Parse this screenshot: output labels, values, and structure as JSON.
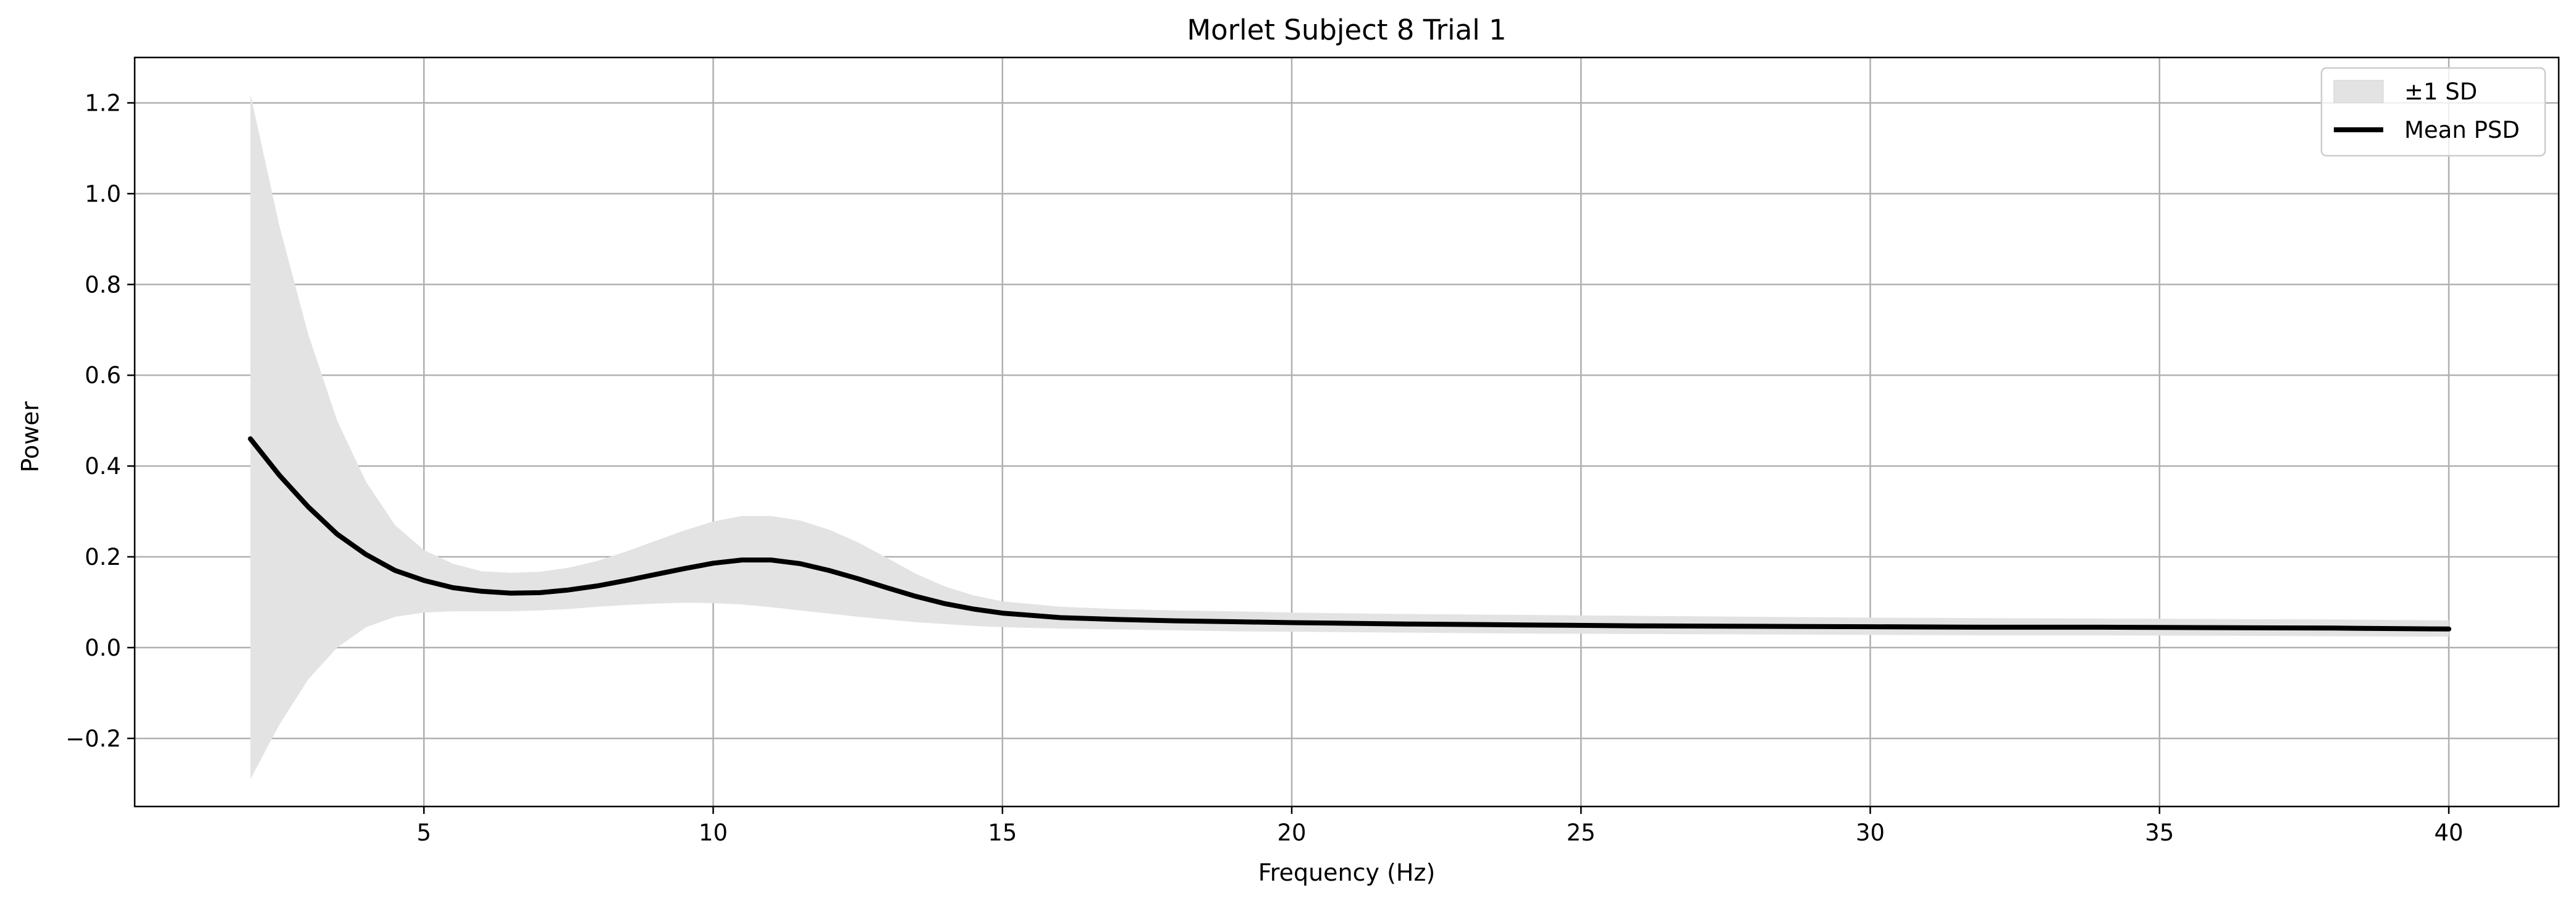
{
  "chart_data": {
    "type": "line",
    "title": "Morlet Subject 8 Trial 1",
    "xlabel": "Frequency (Hz)",
    "ylabel": "Power",
    "xlim": [
      0,
      41.9
    ],
    "ylim": [
      -0.35,
      1.3
    ],
    "grid": true,
    "legend_position": "top-right",
    "xticks": [
      5,
      10,
      15,
      20,
      25,
      30,
      35,
      40
    ],
    "xtick_labels": [
      "5",
      "10",
      "15",
      "20",
      "25",
      "30",
      "35",
      "40"
    ],
    "yticks": [
      -0.2,
      0.0,
      0.2,
      0.4,
      0.6,
      0.8,
      1.0,
      1.2
    ],
    "ytick_labels": [
      "−0.2",
      "0.0",
      "0.2",
      "0.4",
      "0.6",
      "0.8",
      "1.0",
      "1.2"
    ],
    "x": [
      2,
      2.5,
      3,
      3.5,
      4,
      4.5,
      5,
      5.5,
      6,
      6.5,
      7,
      7.5,
      8,
      8.5,
      9,
      9.5,
      10,
      10.5,
      11,
      11.5,
      12,
      12.5,
      13,
      13.5,
      14,
      14.5,
      15,
      16,
      17,
      18,
      19,
      20,
      22,
      24,
      26,
      28,
      30,
      32,
      34,
      36,
      38,
      40
    ],
    "series": [
      {
        "name": "Mean PSD",
        "color": "#000000",
        "values": [
          0.46,
          0.38,
          0.31,
          0.25,
          0.205,
          0.17,
          0.148,
          0.132,
          0.124,
          0.12,
          0.121,
          0.127,
          0.136,
          0.148,
          0.161,
          0.174,
          0.186,
          0.193,
          0.193,
          0.185,
          0.17,
          0.152,
          0.132,
          0.113,
          0.097,
          0.085,
          0.076,
          0.066,
          0.062,
          0.059,
          0.057,
          0.055,
          0.052,
          0.05,
          0.048,
          0.047,
          0.046,
          0.045,
          0.045,
          0.044,
          0.043,
          0.041
        ]
      }
    ],
    "bands": [
      {
        "name": "±1 SD",
        "color": "#e3e3e3",
        "lower": [
          -0.29,
          -0.17,
          -0.07,
          0.0,
          0.045,
          0.068,
          0.077,
          0.08,
          0.08,
          0.08,
          0.082,
          0.085,
          0.09,
          0.094,
          0.097,
          0.099,
          0.098,
          0.095,
          0.089,
          0.082,
          0.075,
          0.068,
          0.062,
          0.056,
          0.052,
          0.048,
          0.045,
          0.042,
          0.04,
          0.038,
          0.036,
          0.035,
          0.033,
          0.031,
          0.03,
          0.029,
          0.028,
          0.027,
          0.027,
          0.026,
          0.025,
          0.024
        ],
        "upper": [
          1.22,
          0.93,
          0.69,
          0.5,
          0.365,
          0.27,
          0.215,
          0.185,
          0.168,
          0.165,
          0.167,
          0.176,
          0.191,
          0.212,
          0.235,
          0.258,
          0.278,
          0.29,
          0.29,
          0.28,
          0.26,
          0.232,
          0.198,
          0.163,
          0.135,
          0.115,
          0.102,
          0.09,
          0.085,
          0.082,
          0.08,
          0.077,
          0.074,
          0.072,
          0.07,
          0.068,
          0.066,
          0.065,
          0.064,
          0.063,
          0.062,
          0.06
        ]
      }
    ],
    "legend": [
      {
        "label": "±1 SD",
        "kind": "patch",
        "color": "#e3e3e3"
      },
      {
        "label": "Mean PSD",
        "kind": "line",
        "color": "#000000"
      }
    ]
  }
}
